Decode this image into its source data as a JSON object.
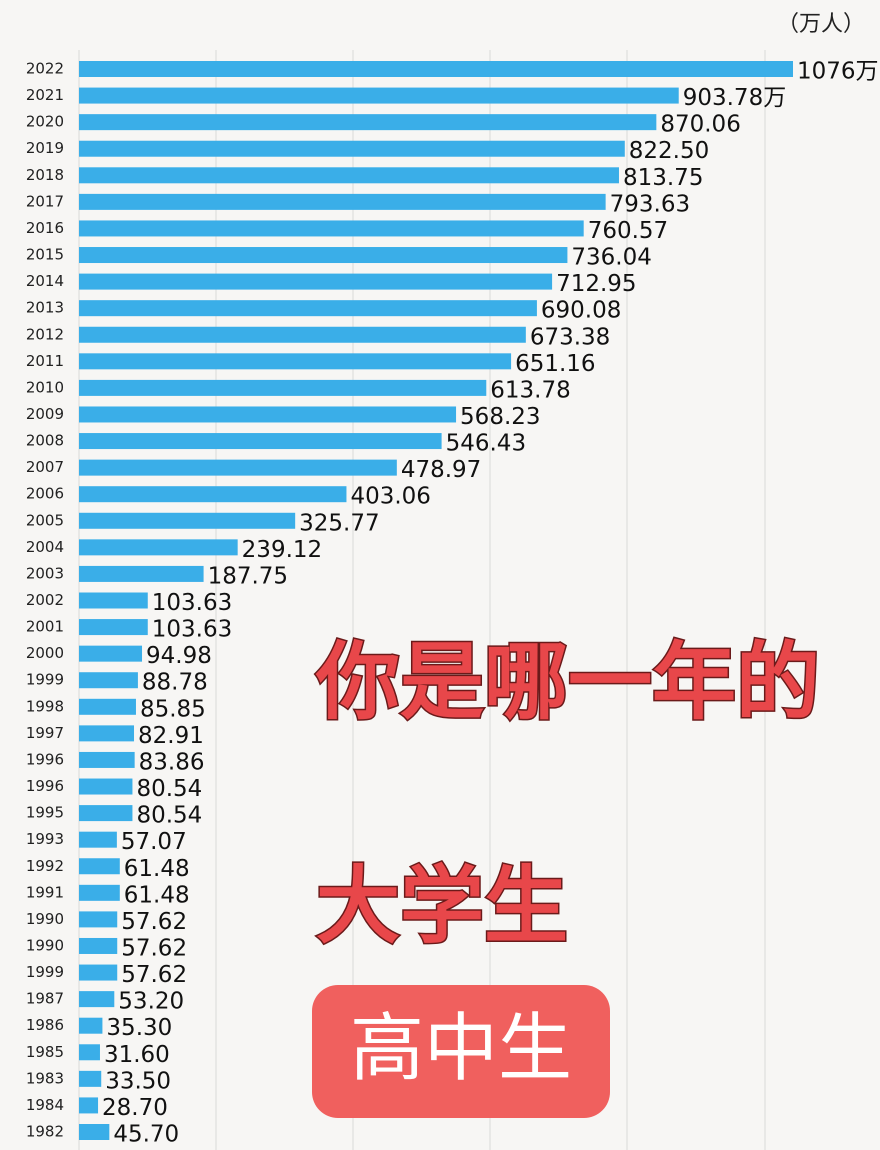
{
  "chart_data": {
    "type": "bar",
    "orientation": "horizontal",
    "unit_label": "（万人）",
    "color": "#3aaee8",
    "categories": [
      "2022",
      "2021",
      "2020",
      "2019",
      "2018",
      "2017",
      "2016",
      "2015",
      "2014",
      "2013",
      "2012",
      "2011",
      "2010",
      "2009",
      "2008",
      "2007",
      "2006",
      "2005",
      "2004",
      "2003",
      "2002",
      "2001",
      "2000",
      "1999",
      "1998",
      "1997",
      "1996",
      "1996",
      "1995",
      "1993",
      "1992",
      "1991",
      "1990",
      "1990",
      "1999",
      "1987",
      "1986",
      "1985",
      "1983",
      "1984",
      "1982"
    ],
    "values": [
      1076,
      903.78,
      870.06,
      822.5,
      813.75,
      793.63,
      760.57,
      736.04,
      712.95,
      690.08,
      673.38,
      651.16,
      613.78,
      568.23,
      546.43,
      478.97,
      403.06,
      325.77,
      239.12,
      187.75,
      103.63,
      103.63,
      94.98,
      88.78,
      85.85,
      82.91,
      83.86,
      80.54,
      80.54,
      57.07,
      61.48,
      61.48,
      57.62,
      57.62,
      57.62,
      53.2,
      35.3,
      31.6,
      33.5,
      28.7,
      45.7
    ],
    "value_labels": [
      "1076万",
      "903.78万",
      "870.06",
      "822.50",
      "813.75",
      "793.63",
      "760.57",
      "736.04",
      "712.95",
      "690.08",
      "673.38",
      "651.16",
      "613.78",
      "568.23",
      "546.43",
      "478.97",
      "403.06",
      "325.77",
      "239.12",
      "187.75",
      "103.63",
      "103.63",
      "94.98",
      "88.78",
      "85.85",
      "82.91",
      "83.86",
      "80.54",
      "80.54",
      "57.07",
      "61.48",
      "61.48",
      "57.62",
      "57.62",
      "57.62",
      "53.20",
      "35.30",
      "31.60",
      "33.50",
      "28.70",
      "45.70"
    ],
    "annotations": [
      "你是哪一年的",
      "大学生",
      "高中生"
    ]
  }
}
